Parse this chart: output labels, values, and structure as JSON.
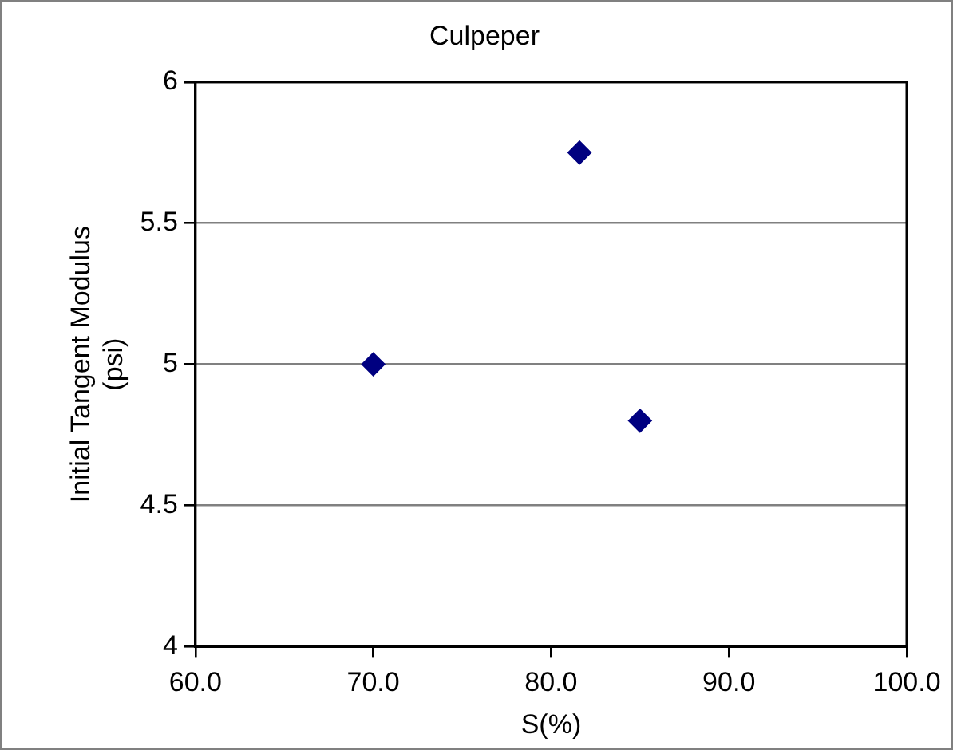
{
  "chart_data": {
    "type": "scatter",
    "title": "Culpeper",
    "xlabel": "S(%)",
    "ylabel": "Initial Tangent Modulus\n(psi)",
    "x": [
      70,
      81.6,
      85
    ],
    "series": [
      {
        "color": "#000080",
        "values": [
          5,
          5.75,
          4.8
        ]
      }
    ],
    "xlim": [
      60,
      100
    ],
    "xticks": [
      {
        "value": 60,
        "label": "60.0"
      },
      {
        "value": 70,
        "label": "70.0"
      },
      {
        "value": 80,
        "label": "80.0"
      },
      {
        "value": 90,
        "label": "90.0"
      },
      {
        "value": 100,
        "label": "100.0"
      }
    ],
    "ylim": [
      4,
      6
    ],
    "yticks": [
      4,
      4.5,
      5,
      5.5,
      6
    ],
    "grid": "y",
    "legend": false,
    "marker": "diamond"
  }
}
